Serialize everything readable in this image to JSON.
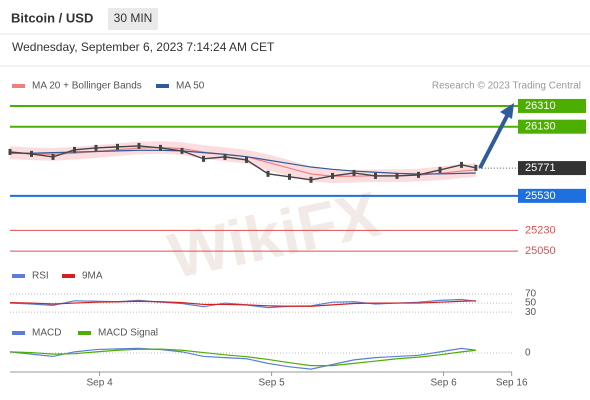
{
  "header": {
    "title": "Bitcoin / USD",
    "interval": "30 MIN",
    "datetime": "Wednesday, September 6, 2023 7:14:24 AM CET"
  },
  "watermark": "WikiFX",
  "chart_data": [
    {
      "type": "line",
      "credit": "Research © 2023 Trading Central",
      "x": [
        0,
        3,
        6,
        9,
        12,
        15,
        18,
        21,
        24,
        27,
        30,
        33,
        36,
        39,
        42,
        45,
        48,
        51,
        54,
        57,
        60,
        63,
        65
      ],
      "xlim": [
        0,
        72
      ],
      "xticks": [
        {
          "value": 12.5,
          "label": "Sep 4"
        },
        {
          "value": 36.5,
          "label": "Sep 5"
        },
        {
          "value": 60.5,
          "label": "Sep 6"
        },
        {
          "value": 70,
          "label": "Sep 16"
        }
      ],
      "ylim": [
        24930,
        26405
      ],
      "close": {
        "color": "#444444",
        "values": [
          25911,
          25894,
          25868,
          25929,
          25946,
          25955,
          25963,
          25946,
          25920,
          25851,
          25868,
          25842,
          25721,
          25695,
          25669,
          25703,
          25729,
          25703,
          25703,
          25712,
          25755,
          25799,
          25773
        ]
      },
      "series": [
        {
          "name": "MA 20 + Bollinger Bands",
          "color": "#f08080",
          "band_color": "#fbdde0",
          "values": [
            25905,
            25895,
            25890,
            25900,
            25915,
            25930,
            25945,
            25950,
            25940,
            25910,
            25890,
            25870,
            25820,
            25770,
            25720,
            25700,
            25700,
            25705,
            25705,
            25710,
            25725,
            25745,
            25755
          ],
          "band_upper": [
            25960,
            25950,
            25945,
            25955,
            25970,
            25985,
            26000,
            26005,
            25995,
            25970,
            25950,
            25930,
            25890,
            25840,
            25785,
            25760,
            25755,
            25760,
            25760,
            25765,
            25785,
            25805,
            25815
          ],
          "band_lower": [
            25850,
            25840,
            25835,
            25845,
            25860,
            25875,
            25890,
            25895,
            25885,
            25850,
            25830,
            25810,
            25750,
            25700,
            25655,
            25640,
            25645,
            25650,
            25650,
            25655,
            25665,
            25685,
            25695
          ]
        },
        {
          "name": "MA 50",
          "color": "#2f5b9a",
          "values": [
            25900,
            25900,
            25905,
            25910,
            25915,
            25920,
            25925,
            25925,
            25920,
            25905,
            25890,
            25870,
            25840,
            25810,
            25780,
            25760,
            25745,
            25735,
            25725,
            25720,
            25720,
            25725,
            25728
          ]
        }
      ],
      "levels": [
        {
          "value": 26310,
          "color": "#4caf00",
          "tag": true
        },
        {
          "value": 26130,
          "color": "#4caf00",
          "tag": true
        },
        {
          "value": 25530,
          "color": "#1e6fe0",
          "tag": true
        },
        {
          "value": 25230,
          "color": "#e05050",
          "tag": false
        },
        {
          "value": 25050,
          "color": "#e05050",
          "tag": false
        }
      ],
      "current": {
        "value": 25771,
        "color": "#333333"
      }
    },
    {
      "type": "line",
      "x": [
        0,
        3,
        6,
        9,
        12,
        15,
        18,
        21,
        24,
        27,
        30,
        33,
        36,
        39,
        42,
        45,
        48,
        51,
        54,
        57,
        60,
        63,
        65
      ],
      "xlim": [
        0,
        72
      ],
      "ylim": [
        17,
        90
      ],
      "yticks": [
        70,
        50,
        30
      ],
      "series": [
        {
          "name": "RSI",
          "color": "#5b7fd8",
          "values": [
            50,
            48,
            45,
            55,
            54,
            53,
            56,
            52,
            49,
            42,
            50,
            46,
            40,
            43,
            44,
            52,
            53,
            48,
            50,
            52,
            56,
            58,
            54
          ]
        },
        {
          "name": "9MA",
          "color": "#d32020",
          "values": [
            51,
            50,
            48,
            50,
            52,
            53,
            54,
            53,
            51,
            47,
            47,
            46,
            44,
            43,
            43,
            46,
            49,
            50,
            50,
            50,
            52,
            54,
            55
          ]
        }
      ]
    },
    {
      "type": "line",
      "x": [
        0,
        3,
        6,
        9,
        12,
        15,
        18,
        21,
        24,
        27,
        30,
        33,
        36,
        39,
        42,
        45,
        48,
        51,
        54,
        57,
        60,
        63,
        65
      ],
      "xlim": [
        0,
        72
      ],
      "ylim": [
        -100,
        100
      ],
      "yticks": [
        0
      ],
      "series": [
        {
          "name": "MACD",
          "color": "#5b7fd8",
          "values": [
            5,
            -5,
            -15,
            5,
            15,
            18,
            20,
            15,
            5,
            -15,
            -20,
            -25,
            -45,
            -60,
            -70,
            -50,
            -30,
            -20,
            -15,
            -10,
            5,
            20,
            12
          ]
        },
        {
          "name": "MACD Signal",
          "color": "#4caf00",
          "values": [
            5,
            2,
            -5,
            -3,
            5,
            12,
            16,
            17,
            12,
            2,
            -8,
            -16,
            -28,
            -42,
            -55,
            -55,
            -45,
            -35,
            -25,
            -18,
            -8,
            5,
            12
          ]
        }
      ]
    }
  ]
}
